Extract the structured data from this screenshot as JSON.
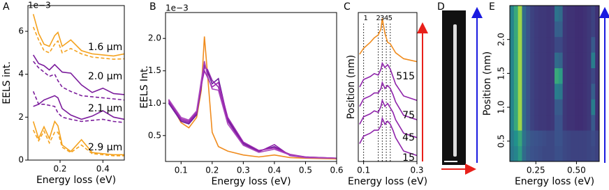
{
  "chart_data": [
    {
      "type": "line",
      "panel_label": "A",
      "offset_text": "1e−3",
      "xlabel": "Energy loss (eV)",
      "ylabel": "EELS int.",
      "xlim": [
        0.05,
        0.5
      ],
      "ylim": [
        0,
        7.2
      ],
      "xticks": [
        0.2,
        0.4
      ],
      "yticks": [
        0,
        2,
        4,
        6
      ],
      "x": [
        0.075,
        0.1,
        0.125,
        0.15,
        0.175,
        0.19,
        0.21,
        0.25,
        0.3,
        0.35,
        0.4,
        0.45,
        0.5
      ],
      "series": [
        {
          "color": "#f4a21e",
          "dash": false,
          "values": [
            6.8,
            5.9,
            5.4,
            5.3,
            5.8,
            5.95,
            5.3,
            5.6,
            5.1,
            4.95,
            4.9,
            4.85,
            4.95
          ]
        },
        {
          "color": "#f4a21e",
          "dash": true,
          "values": [
            6.2,
            5.6,
            5.1,
            5.0,
            5.4,
            5.55,
            5.0,
            5.2,
            4.95,
            4.8,
            4.75,
            4.7,
            4.72
          ]
        },
        {
          "color": "#7b1c9c",
          "dash": false,
          "values": [
            4.9,
            4.5,
            4.4,
            4.2,
            4.45,
            4.3,
            4.1,
            4.05,
            3.5,
            3.15,
            3.35,
            3.1,
            3.05
          ]
        },
        {
          "color": "#7b1c9c",
          "dash": true,
          "values": [
            4.6,
            4.3,
            4.1,
            3.9,
            4.0,
            3.7,
            3.4,
            3.2,
            3.0,
            2.95,
            2.9,
            2.85,
            2.8
          ]
        },
        {
          "color": "#7b1c9c",
          "dash": false,
          "values": [
            2.5,
            2.6,
            2.8,
            2.9,
            3.0,
            2.9,
            2.4,
            2.1,
            1.9,
            2.05,
            2.3,
            2.0,
            1.9
          ]
        },
        {
          "color": "#7b1c9c",
          "dash": true,
          "values": [
            3.2,
            2.6,
            2.6,
            2.55,
            2.5,
            2.2,
            2.0,
            1.9,
            1.8,
            1.85,
            1.9,
            1.8,
            1.75
          ]
        },
        {
          "color": "#f4a21e",
          "dash": false,
          "values": [
            1.8,
            1.0,
            1.55,
            1.0,
            1.8,
            1.6,
            0.7,
            0.4,
            0.95,
            0.35,
            0.3,
            0.25,
            0.25
          ]
        },
        {
          "color": "#f4a21e",
          "dash": true,
          "values": [
            1.4,
            0.9,
            1.35,
            0.8,
            1.3,
            1.3,
            0.6,
            0.35,
            0.7,
            0.3,
            0.25,
            0.2,
            0.2
          ]
        }
      ],
      "annotations": [
        "1.6 µm",
        "2.0 µm",
        "2.1 µm",
        "2.9 µm"
      ]
    },
    {
      "type": "line",
      "panel_label": "B",
      "offset_text": "1e−3",
      "xlabel": "Energy loss (eV)",
      "ylabel": "EELS Int.",
      "xlim": [
        0.05,
        0.6
      ],
      "ylim": [
        0.1,
        2.4
      ],
      "xticks": [
        0.1,
        0.2,
        0.3,
        0.4,
        0.5,
        0.6
      ],
      "yticks": [
        0.5,
        {
          "value": 1,
          "label": "1.0"
        },
        1.5,
        {
          "value": 2,
          "label": "2.0"
        }
      ],
      "x": [
        0.06,
        0.1,
        0.125,
        0.15,
        0.165,
        0.175,
        0.185,
        0.2,
        0.22,
        0.25,
        0.3,
        0.35,
        0.4,
        0.45,
        0.5,
        0.6
      ],
      "series": [
        {
          "color": "#f08c1e",
          "dash": false,
          "values": [
            1.05,
            0.7,
            0.62,
            0.78,
            1.2,
            2.03,
            1.45,
            0.55,
            0.33,
            0.26,
            0.2,
            0.17,
            0.2,
            0.16,
            0.15,
            0.14
          ]
        },
        {
          "color": "#6a1b9a",
          "dash": false,
          "values": [
            1.0,
            0.72,
            0.68,
            0.82,
            1.25,
            1.6,
            1.48,
            1.3,
            1.38,
            0.75,
            0.38,
            0.26,
            0.33,
            0.2,
            0.17,
            0.15
          ]
        },
        {
          "color": "#8e24aa",
          "dash": false,
          "values": [
            1.02,
            0.74,
            0.7,
            0.84,
            1.3,
            1.55,
            1.52,
            1.35,
            1.25,
            0.72,
            0.36,
            0.25,
            0.36,
            0.19,
            0.16,
            0.15
          ]
        },
        {
          "color": "#9c27b0",
          "dash": false,
          "values": [
            1.04,
            0.76,
            0.72,
            0.86,
            1.28,
            1.5,
            1.4,
            1.25,
            1.32,
            0.78,
            0.4,
            0.27,
            0.31,
            0.21,
            0.17,
            0.15
          ]
        },
        {
          "color": "#ab47bc",
          "dash": false,
          "values": [
            1.06,
            0.78,
            0.74,
            0.88,
            1.35,
            1.65,
            1.42,
            1.22,
            1.2,
            0.68,
            0.35,
            0.24,
            0.29,
            0.2,
            0.16,
            0.15
          ]
        }
      ]
    },
    {
      "type": "line",
      "panel_label": "C",
      "xlabel": "Energy loss (eV)",
      "ylabel": "Position (nm)",
      "xlim": [
        0.08,
        0.3
      ],
      "ylim": [
        0,
        10
      ],
      "xticks": [
        0.1,
        0.3
      ],
      "peaks": [
        {
          "value": 0.1,
          "label": "1"
        },
        {
          "value": 0.155,
          "label": "2"
        },
        {
          "value": 0.17,
          "label": "3"
        },
        {
          "value": 0.185,
          "label": "4"
        },
        {
          "value": 0.2,
          "label": "5"
        }
      ],
      "x": [
        0.085,
        0.1,
        0.125,
        0.14,
        0.155,
        0.165,
        0.17,
        0.18,
        0.19,
        0.2,
        0.21,
        0.22,
        0.25,
        0.3
      ],
      "series": [
        {
          "color": "#f08c1e",
          "dash": false,
          "values": [
            7.2,
            7.6,
            8.0,
            8.3,
            8.5,
            8.9,
            9.6,
            8.6,
            8.0,
            7.9,
            7.6,
            7.3,
            6.9,
            6.7
          ]
        },
        {
          "color": "#8e24aa",
          "dash": false,
          "values": [
            5.0,
            5.5,
            5.7,
            5.9,
            5.8,
            6.2,
            6.6,
            6.3,
            6.5,
            6.2,
            5.7,
            5.2,
            4.4,
            4.1
          ]
        },
        {
          "color": "#8e24aa",
          "dash": false,
          "values": [
            3.7,
            4.2,
            4.4,
            4.6,
            4.6,
            4.9,
            5.3,
            4.9,
            5.1,
            4.9,
            4.5,
            4.0,
            3.1,
            2.8
          ]
        },
        {
          "color": "#8e24aa",
          "dash": false,
          "values": [
            2.5,
            3.0,
            3.2,
            3.4,
            3.3,
            3.7,
            4.1,
            3.7,
            3.9,
            3.6,
            3.3,
            2.8,
            1.9,
            1.6
          ]
        },
        {
          "color": "#8e24aa",
          "dash": false,
          "values": [
            1.2,
            1.7,
            1.9,
            2.1,
            2.1,
            2.4,
            2.9,
            2.5,
            2.7,
            2.5,
            2.1,
            1.6,
            0.7,
            0.4
          ]
        }
      ],
      "annotations": [
        "515",
        "75",
        "45",
        "15"
      ]
    },
    {
      "type": "image",
      "panel_label": "D"
    },
    {
      "type": "heatmap",
      "panel_label": "E",
      "xlabel": "Energy loss (eV)",
      "ylabel": "Position (nm)",
      "colormap": "viridis",
      "xlim": [
        0.09,
        0.64
      ],
      "ylim": [
        0.2,
        2.5
      ],
      "xticks": [
        0.25,
        {
          "value": 0.5,
          "label": "0.50"
        }
      ],
      "yticks": [
        0.5,
        {
          "value": 1,
          "label": "1.0"
        },
        1.5,
        {
          "value": 2,
          "label": "2.0"
        }
      ],
      "ytick_rotation": 90,
      "x_edges": [
        0.09,
        0.115,
        0.14,
        0.165,
        0.19,
        0.215,
        0.24,
        0.265,
        0.29,
        0.315,
        0.34,
        0.365,
        0.39,
        0.415,
        0.44,
        0.465,
        0.49,
        0.515,
        0.54,
        0.565,
        0.59,
        0.615,
        0.64
      ],
      "y_edges": [
        0.2,
        0.43,
        0.66,
        0.89,
        1.12,
        1.35,
        1.58,
        1.81,
        2.04,
        2.27,
        2.5
      ],
      "z": [
        [
          0.4,
          0.45,
          0.55,
          0.35,
          0.28,
          0.25,
          0.24,
          0.23,
          0.22,
          0.22,
          0.22,
          0.24,
          0.24,
          0.22,
          0.21,
          0.2,
          0.2,
          0.2,
          0.2,
          0.21,
          0.22,
          0.2
        ],
        [
          0.42,
          0.5,
          0.6,
          0.38,
          0.3,
          0.26,
          0.25,
          0.24,
          0.23,
          0.22,
          0.22,
          0.25,
          0.25,
          0.22,
          0.21,
          0.2,
          0.2,
          0.2,
          0.2,
          0.21,
          0.23,
          0.2
        ],
        [
          0.45,
          0.6,
          0.85,
          0.35,
          0.25,
          0.2,
          0.18,
          0.17,
          0.17,
          0.16,
          0.17,
          0.25,
          0.25,
          0.17,
          0.15,
          0.15,
          0.14,
          0.14,
          0.15,
          0.17,
          0.28,
          0.15
        ],
        [
          0.45,
          0.6,
          0.85,
          0.35,
          0.25,
          0.2,
          0.18,
          0.17,
          0.17,
          0.16,
          0.17,
          0.28,
          0.28,
          0.17,
          0.15,
          0.15,
          0.14,
          0.14,
          0.15,
          0.17,
          0.42,
          0.15
        ],
        [
          0.45,
          0.6,
          0.85,
          0.35,
          0.25,
          0.2,
          0.18,
          0.17,
          0.17,
          0.16,
          0.17,
          0.42,
          0.4,
          0.17,
          0.15,
          0.15,
          0.14,
          0.14,
          0.15,
          0.17,
          0.3,
          0.15
        ],
        [
          0.45,
          0.6,
          0.85,
          0.35,
          0.25,
          0.2,
          0.18,
          0.17,
          0.17,
          0.16,
          0.17,
          0.6,
          0.55,
          0.17,
          0.15,
          0.15,
          0.14,
          0.14,
          0.15,
          0.17,
          0.22,
          0.15
        ],
        [
          0.45,
          0.6,
          0.85,
          0.35,
          0.25,
          0.2,
          0.18,
          0.17,
          0.17,
          0.16,
          0.17,
          0.35,
          0.32,
          0.17,
          0.15,
          0.15,
          0.14,
          0.14,
          0.15,
          0.17,
          0.42,
          0.15
        ],
        [
          0.45,
          0.6,
          0.85,
          0.35,
          0.25,
          0.2,
          0.18,
          0.17,
          0.17,
          0.16,
          0.17,
          0.22,
          0.22,
          0.17,
          0.15,
          0.15,
          0.14,
          0.14,
          0.15,
          0.17,
          0.28,
          0.15
        ],
        [
          0.45,
          0.6,
          0.85,
          0.35,
          0.25,
          0.2,
          0.18,
          0.17,
          0.17,
          0.16,
          0.17,
          0.3,
          0.3,
          0.17,
          0.15,
          0.15,
          0.14,
          0.14,
          0.15,
          0.17,
          0.2,
          0.15
        ],
        [
          0.45,
          0.6,
          0.85,
          0.35,
          0.25,
          0.2,
          0.18,
          0.17,
          0.17,
          0.16,
          0.17,
          0.38,
          0.35,
          0.17,
          0.15,
          0.15,
          0.14,
          0.14,
          0.15,
          0.17,
          0.2,
          0.15
        ]
      ]
    }
  ]
}
